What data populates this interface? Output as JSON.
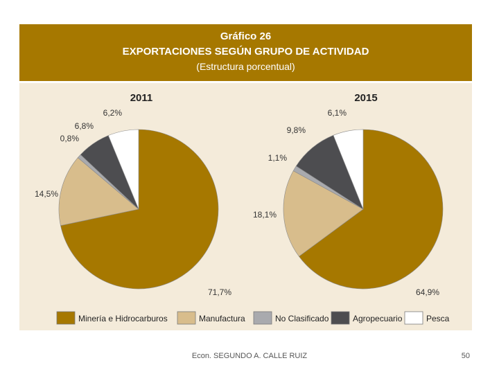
{
  "header": {
    "title": "Gráfico 26",
    "subtitle": "EXPORTACIONES SEGÚN GRUPO DE ACTIVIDAD",
    "note": "(Estructura porcentual)"
  },
  "colors": {
    "header_bg": "#a67800",
    "panel_bg": "#f4ebda",
    "Minería e Hidrocarburos": "#a67800",
    "Manufactura": "#d8bd8c",
    "No Clasificado": "#a9aaae",
    "Agropecuario": "#4d4d50",
    "Pesca": "#ffffff"
  },
  "chart_data": [
    {
      "type": "pie",
      "title": "2011",
      "slices": [
        {
          "name": "Minería e Hidrocarburos",
          "value": 71.7,
          "label": "71,7%"
        },
        {
          "name": "Manufactura",
          "value": 14.5,
          "label": "14,5%"
        },
        {
          "name": "No Clasificado",
          "value": 0.8,
          "label": "0,8%"
        },
        {
          "name": "Agropecuario",
          "value": 6.8,
          "label": "6,8%"
        },
        {
          "name": "Pesca",
          "value": 6.2,
          "label": "6,2%"
        }
      ],
      "legend": "bottom"
    },
    {
      "type": "pie",
      "title": "2015",
      "slices": [
        {
          "name": "Minería e Hidrocarburos",
          "value": 64.9,
          "label": "64,9%"
        },
        {
          "name": "Manufactura",
          "value": 18.1,
          "label": "18,1%"
        },
        {
          "name": "No Clasificado",
          "value": 1.1,
          "label": "1,1%"
        },
        {
          "name": "Agropecuario",
          "value": 9.8,
          "label": "9,8%"
        },
        {
          "name": "Pesca",
          "value": 6.1,
          "label": "6,1%"
        }
      ],
      "legend": "bottom"
    }
  ],
  "legend": {
    "items": [
      "Minería e Hidrocarburos",
      "Manufactura",
      "No Clasificado",
      "Agropecuario",
      "Pesca"
    ]
  },
  "footer": {
    "author": "Econ. SEGUNDO A. CALLE RUIZ",
    "page": "50"
  }
}
